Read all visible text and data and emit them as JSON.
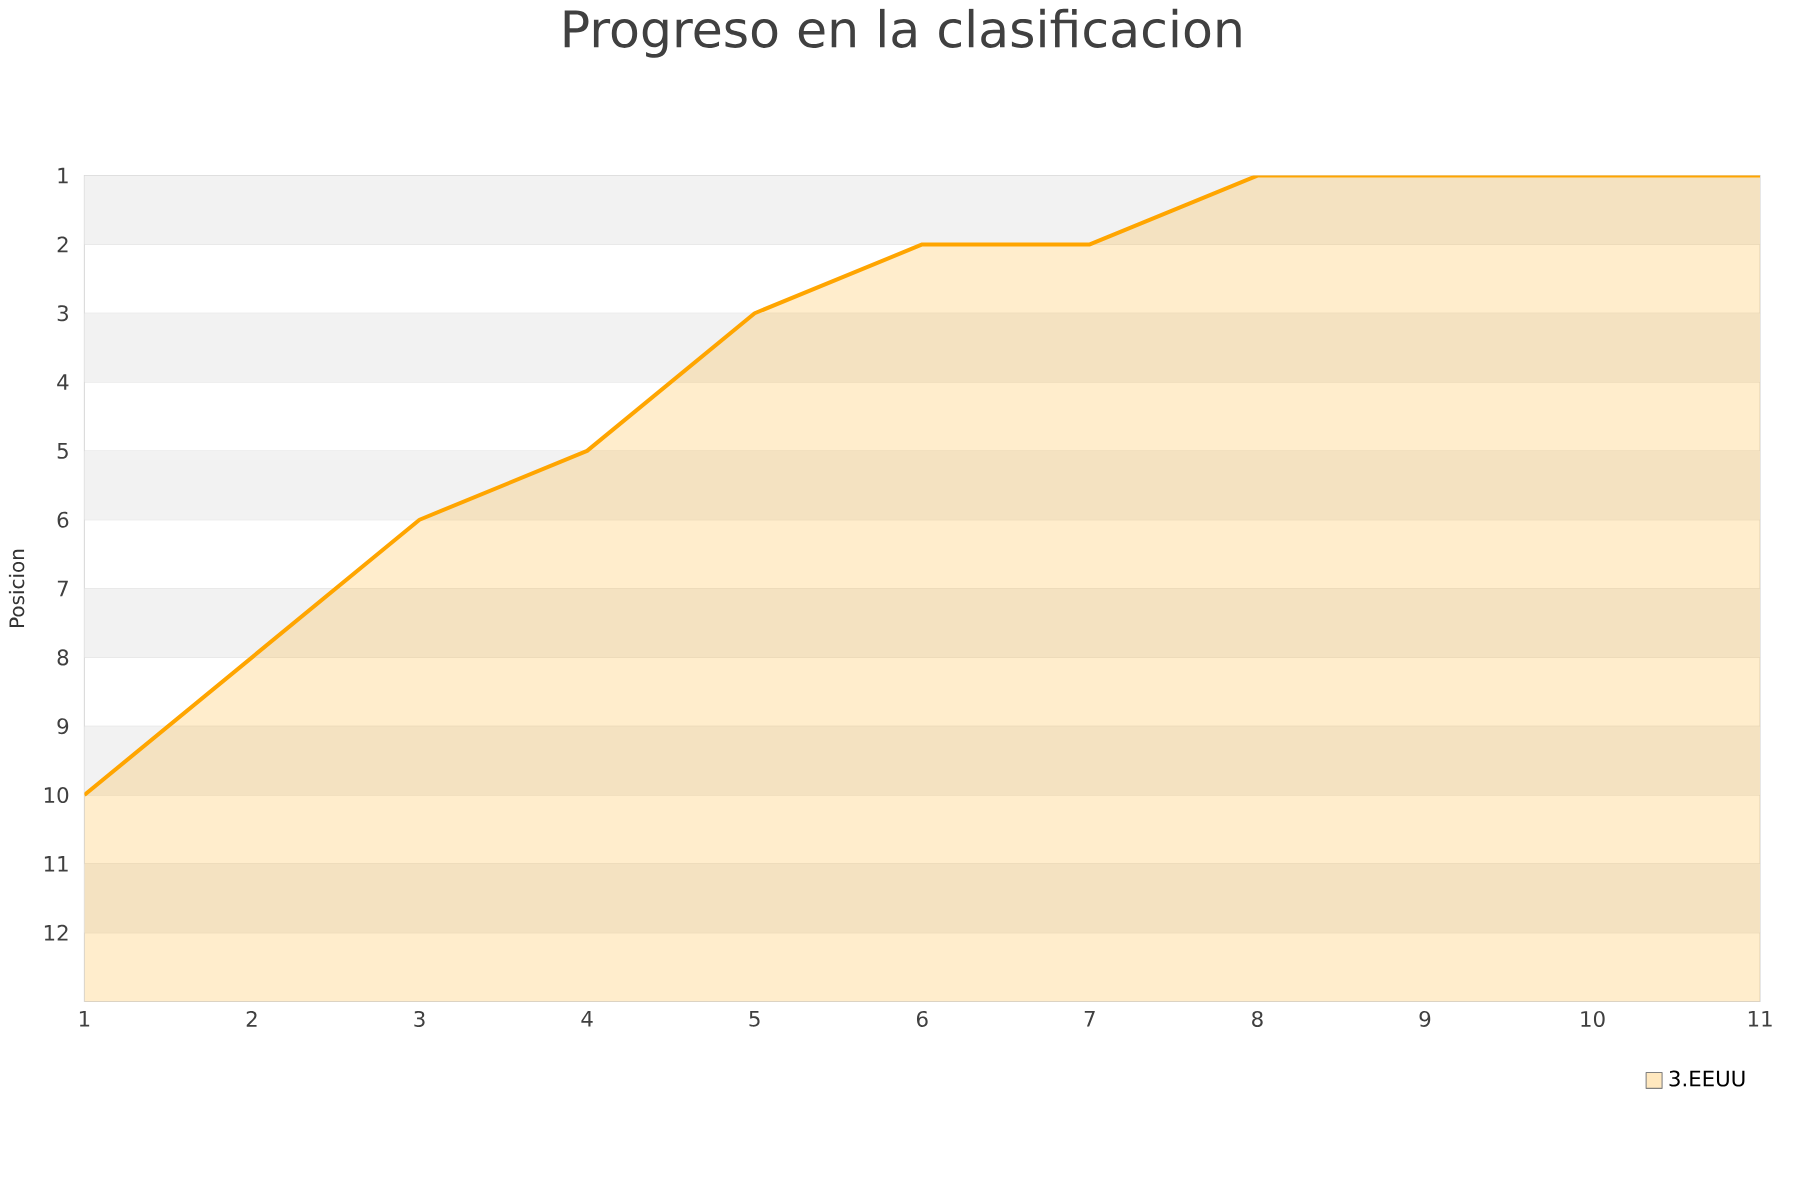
{
  "chart_data": {
    "type": "area",
    "title": "Progreso en la clasificacion",
    "ylabel": "Posicion",
    "x": [
      1,
      2,
      3,
      4,
      5,
      6,
      7,
      8,
      9,
      10,
      11
    ],
    "series": [
      {
        "name": "3.EEUU",
        "color": "#ffa500",
        "values": [
          10,
          8,
          6,
          5,
          3,
          2,
          2,
          1,
          1,
          1,
          1
        ]
      }
    ],
    "xlim": [
      1,
      11
    ],
    "xticks": [
      1,
      2,
      3,
      4,
      5,
      6,
      7,
      8,
      9,
      10,
      11
    ],
    "ylim": [
      13,
      1
    ],
    "yticks": [
      1,
      2,
      3,
      4,
      5,
      6,
      7,
      8,
      9,
      10,
      11,
      12
    ],
    "bands": [
      {
        "axis": "y",
        "from": 1,
        "to": 2,
        "color": "#f2f2f2"
      },
      {
        "axis": "y",
        "from": 3,
        "to": 4,
        "color": "#f2f2f2"
      },
      {
        "axis": "y",
        "from": 5,
        "to": 6,
        "color": "#f2f2f2"
      },
      {
        "axis": "y",
        "from": 7,
        "to": 8,
        "color": "#f2f2f2"
      },
      {
        "axis": "y",
        "from": 9,
        "to": 10,
        "color": "#f2f2f2"
      },
      {
        "axis": "y",
        "from": 11,
        "to": 12,
        "color": "#f2f2f2"
      }
    ],
    "grid": "y",
    "legend": "bottom right",
    "marker": "none",
    "line_style": "solid"
  }
}
